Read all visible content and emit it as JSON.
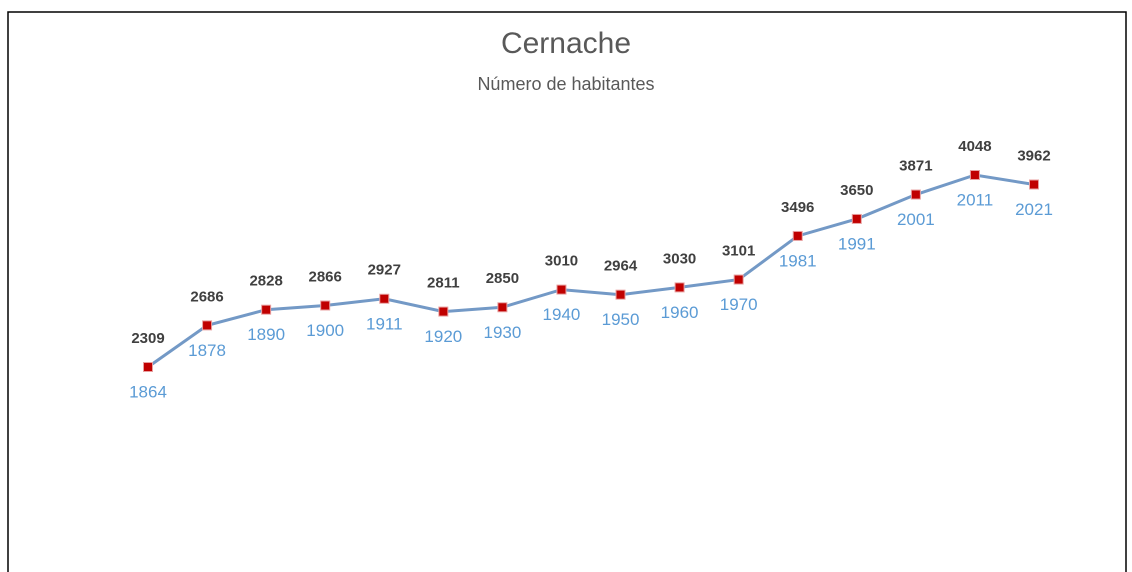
{
  "chart_data": {
    "type": "line",
    "title": "Cernache",
    "subtitle": "Número de habitantes",
    "categories": [
      "1864",
      "1878",
      "1890",
      "1900",
      "1911",
      "1920",
      "1930",
      "1940",
      "1950",
      "1960",
      "1970",
      "1981",
      "1991",
      "2001",
      "2011",
      "2021"
    ],
    "series": [
      {
        "name": "Número de habitantes",
        "color": "#7399c6",
        "marker_color": "#c00000",
        "values": [
          2309,
          2686,
          2828,
          2866,
          2927,
          2811,
          2850,
          3010,
          2964,
          3030,
          3101,
          3496,
          3650,
          3871,
          4048,
          3962
        ]
      }
    ]
  }
}
